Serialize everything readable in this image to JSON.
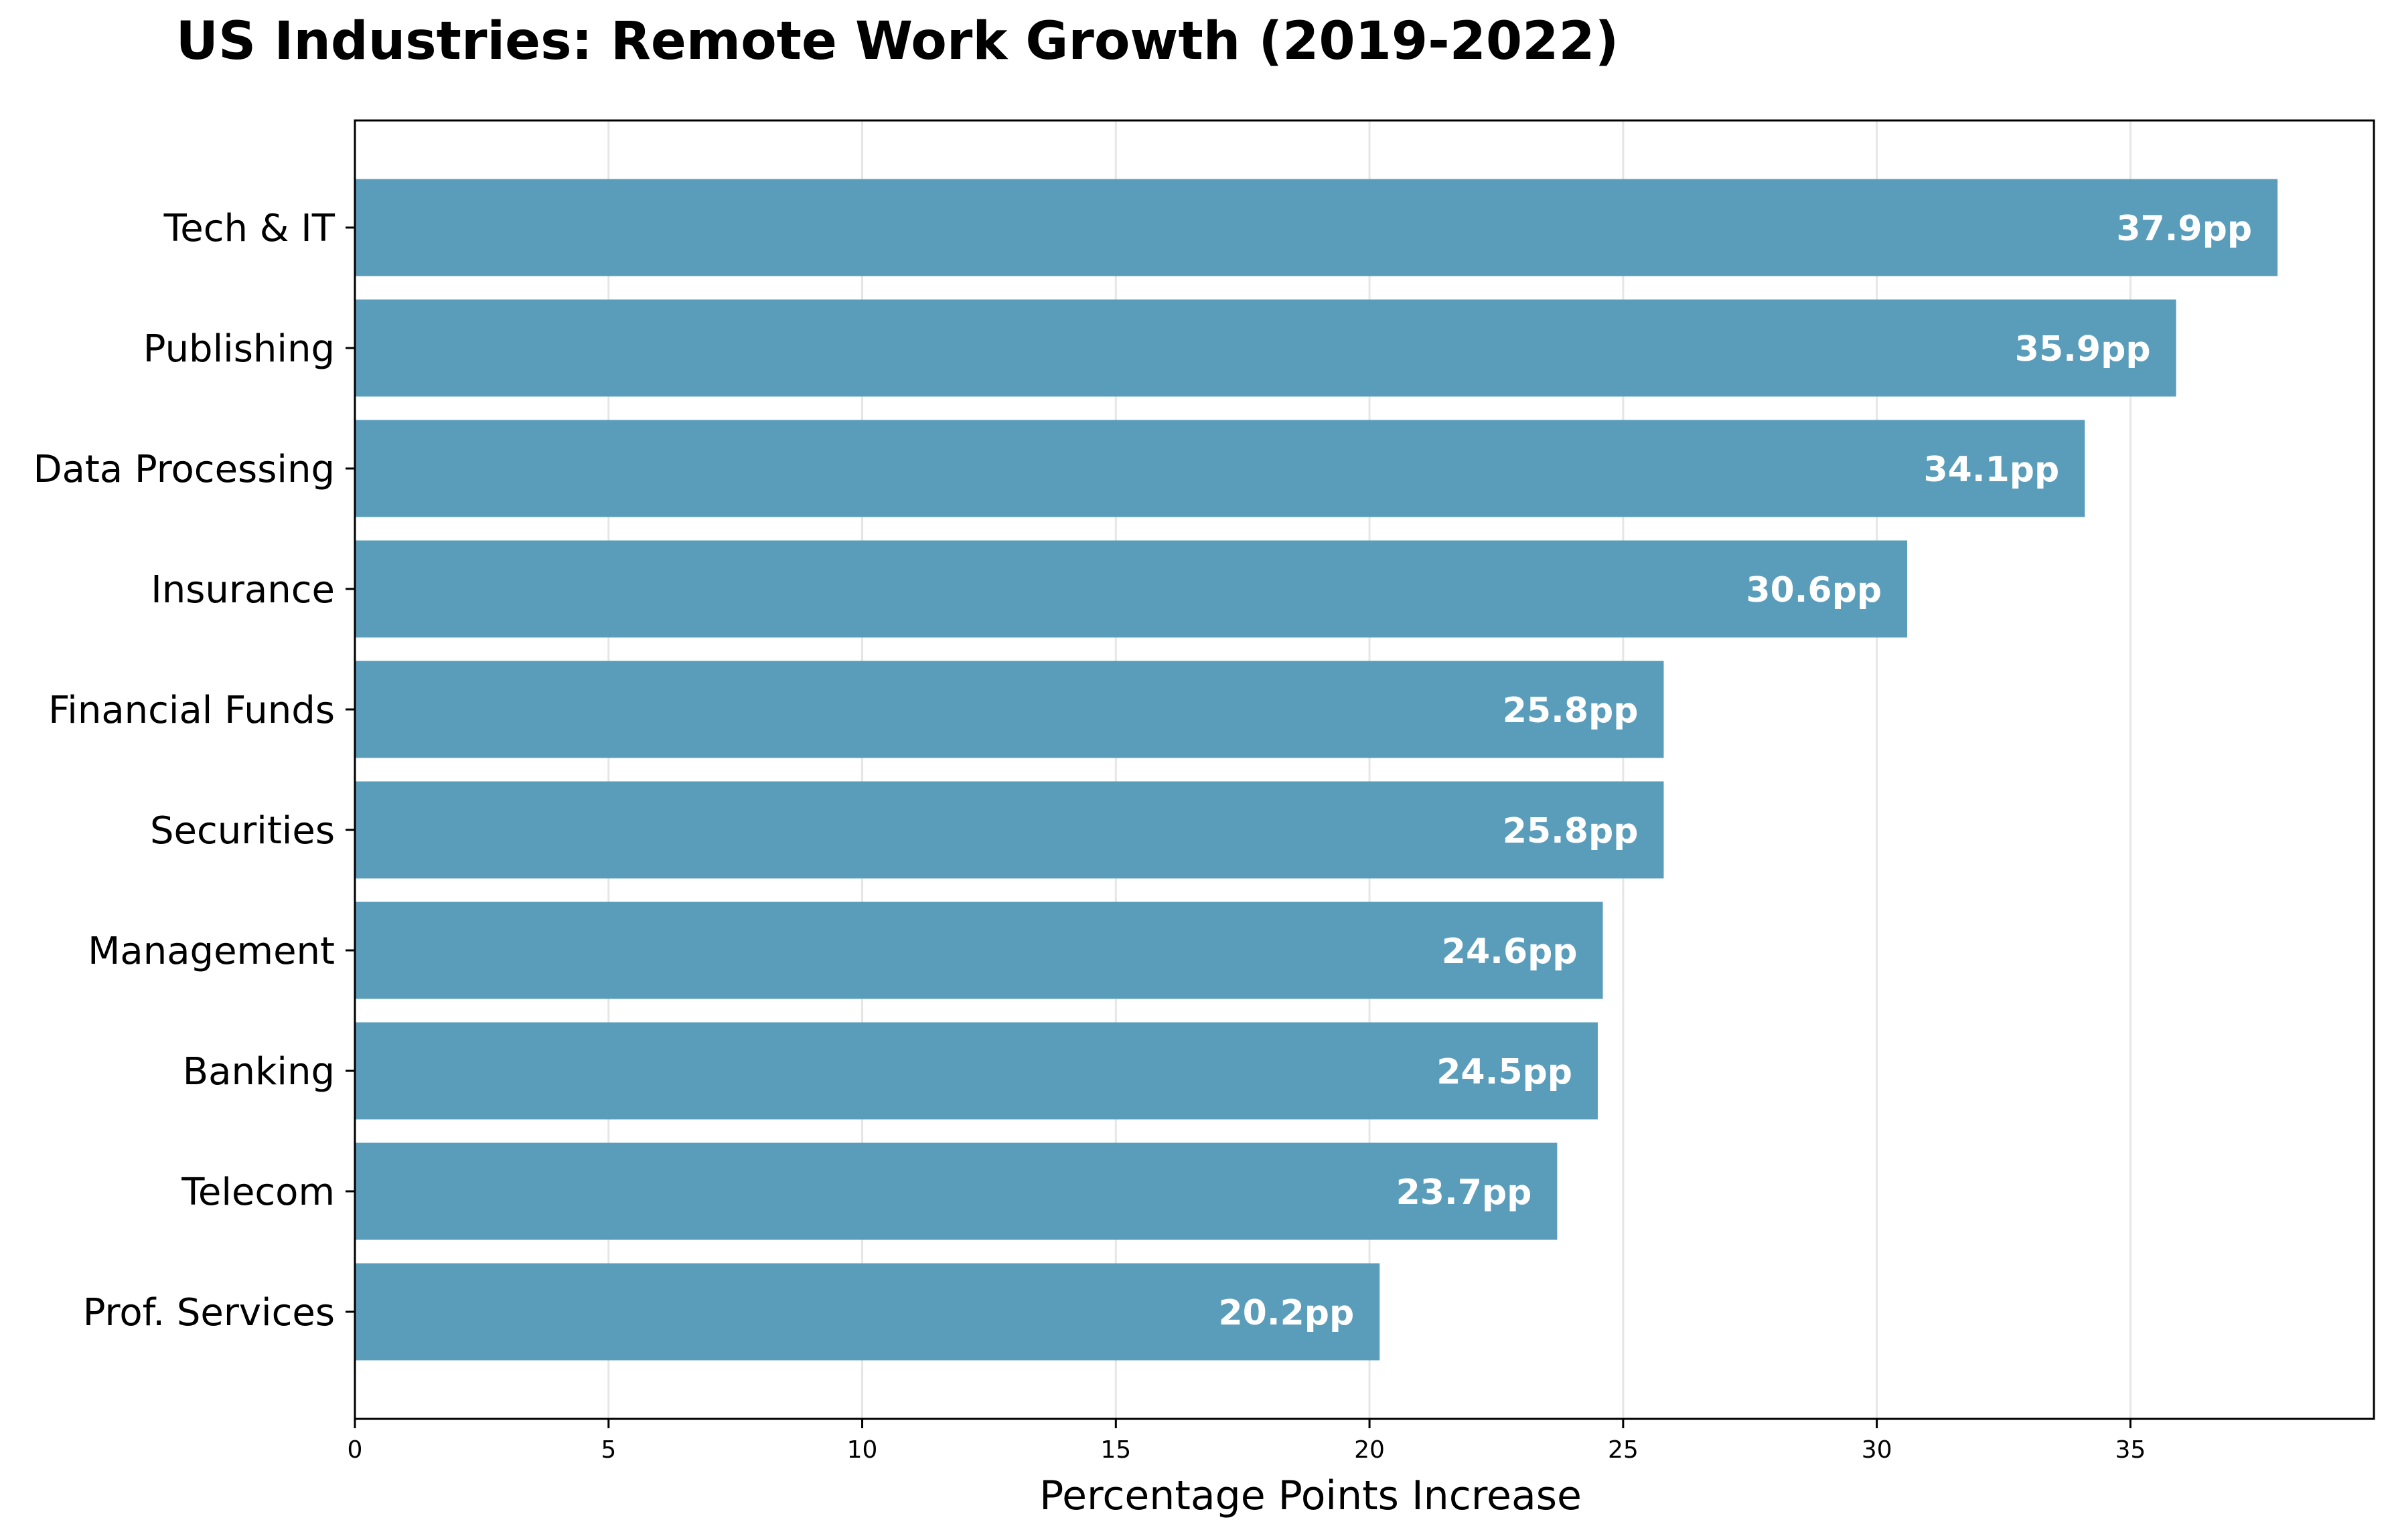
{
  "chart_data": {
    "type": "bar",
    "orientation": "horizontal",
    "title": "US Industries: Remote Work Growth (2019-2022)",
    "xlabel": "Percentage Points Increase",
    "ylabel": "",
    "categories": [
      "Tech & IT",
      "Publishing",
      "Data Processing",
      "Insurance",
      "Financial Funds",
      "Securities",
      "Management",
      "Banking",
      "Telecom",
      "Prof. Services"
    ],
    "values": [
      37.9,
      35.9,
      34.1,
      30.6,
      25.8,
      25.8,
      24.6,
      24.5,
      23.7,
      20.2
    ],
    "data_labels": [
      "37.9pp",
      "35.9pp",
      "34.1pp",
      "30.6pp",
      "25.8pp",
      "25.8pp",
      "24.6pp",
      "24.5pp",
      "23.7pp",
      "20.2pp"
    ],
    "xlim": [
      0,
      39.8
    ],
    "xticks": [
      0,
      5,
      10,
      15,
      20,
      25,
      30,
      35
    ],
    "xtick_labels": [
      "0",
      "5",
      "10",
      "15",
      "20",
      "25",
      "30",
      "35"
    ],
    "grid": "x",
    "bar_color": "#5a9dbb",
    "grid_color": "#e6e6e6"
  }
}
